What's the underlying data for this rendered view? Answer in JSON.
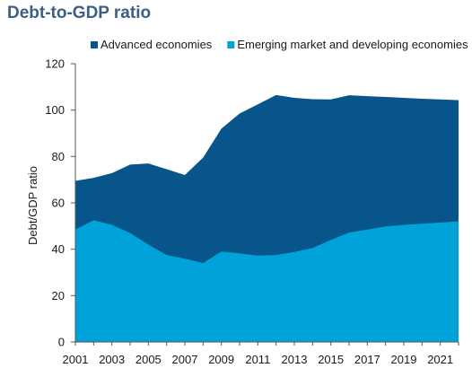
{
  "chart_data": {
    "type": "area",
    "title": "Debt-to-GDP ratio",
    "ylabel": "Debt/GDP ratio",
    "xlabel": "",
    "ylim": [
      0,
      120
    ],
    "yticks": [
      0,
      20,
      40,
      60,
      80,
      100,
      120
    ],
    "xticks": [
      2001,
      2003,
      2005,
      2007,
      2009,
      2011,
      2013,
      2015,
      2017,
      2019,
      2021
    ],
    "x": [
      2001,
      2002,
      2003,
      2004,
      2005,
      2006,
      2007,
      2008,
      2009,
      2010,
      2011,
      2012,
      2013,
      2014,
      2015,
      2016,
      2017,
      2018,
      2019,
      2020,
      2021,
      2022
    ],
    "series": [
      {
        "name": "Advanced economies",
        "color": "#08558c",
        "values": [
          69.5,
          70.8,
          72.8,
          76.5,
          77.0,
          74.5,
          72.0,
          79.5,
          92.0,
          98.5,
          102.5,
          106.5,
          105.3,
          104.7,
          104.6,
          106.4,
          106.0,
          105.7,
          105.3,
          104.9,
          104.6,
          104.3
        ]
      },
      {
        "name": "Emerging market and developing economies",
        "color": "#00a3d9",
        "values": [
          48.5,
          52.5,
          50.5,
          47.0,
          42.0,
          37.5,
          35.9,
          34.0,
          39.0,
          38.2,
          37.2,
          37.5,
          38.8,
          40.5,
          44.0,
          47.2,
          48.5,
          49.8,
          50.5,
          51.0,
          51.5,
          52.0
        ]
      }
    ],
    "grid": false,
    "legend": "top"
  }
}
